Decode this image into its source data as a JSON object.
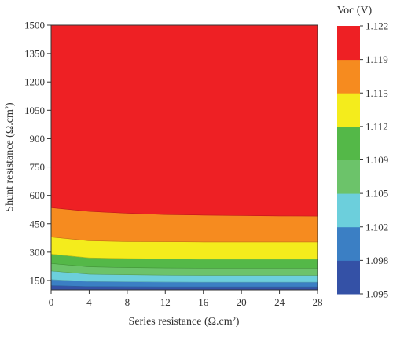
{
  "chart_data": {
    "type": "contour",
    "xlabel": "Series resistance (Ω.cm²)",
    "ylabel": "Shunt resistance (Ω.cm²)",
    "xlim": [
      0,
      28
    ],
    "ylim": [
      100,
      1500
    ],
    "x_ticks": [
      0,
      4,
      8,
      12,
      16,
      20,
      24,
      28
    ],
    "y_ticks": [
      150,
      300,
      450,
      600,
      750,
      900,
      1050,
      1200,
      1350,
      1500
    ],
    "colorbar": {
      "title": "Voc (V)",
      "levels": [
        1.095,
        1.098,
        1.102,
        1.105,
        1.109,
        1.112,
        1.115,
        1.119,
        1.122
      ],
      "colors": [
        "#3451a6",
        "#3b7fc4",
        "#6ccfdc",
        "#6cc36a",
        "#54b848",
        "#f4ec1c",
        "#f68b1f",
        "#ee2024"
      ]
    },
    "contour_boundaries": {
      "x": [
        0,
        4,
        8,
        12,
        16,
        20,
        24,
        28
      ],
      "lines": [
        {
          "level": 1.098,
          "y": [
            123,
            118,
            117,
            116,
            116,
            116,
            116,
            116
          ]
        },
        {
          "level": 1.102,
          "y": [
            155,
            145,
            143,
            142,
            141,
            141,
            141,
            141
          ]
        },
        {
          "level": 1.105,
          "y": [
            200,
            183,
            180,
            178,
            177,
            177,
            177,
            177
          ]
        },
        {
          "level": 1.109,
          "y": [
            240,
            222,
            218,
            216,
            215,
            215,
            215,
            215
          ]
        },
        {
          "level": 1.112,
          "y": [
            290,
            270,
            266,
            264,
            263,
            263,
            263,
            263
          ]
        },
        {
          "level": 1.115,
          "y": [
            380,
            360,
            356,
            355,
            354,
            354,
            354,
            354
          ]
        },
        {
          "level": 1.119,
          "y": [
            535,
            515,
            505,
            498,
            495,
            493,
            491,
            490
          ]
        }
      ]
    }
  }
}
